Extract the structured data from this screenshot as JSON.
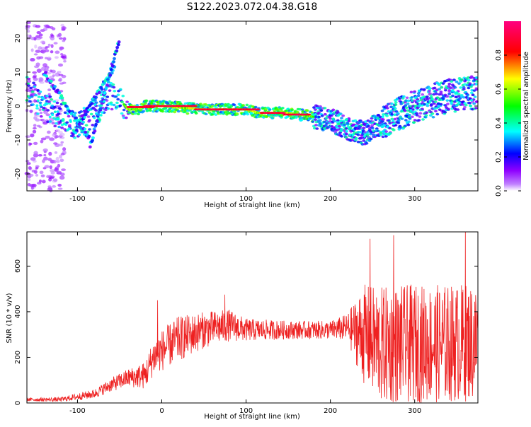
{
  "title": "S122.2023.072.04.38.G18",
  "colors": {
    "axis": "#000000",
    "snr_line": "#ee2020",
    "colormap": [
      "#ffffff",
      "#8f00ff",
      "#0000ff",
      "#00ffff",
      "#00ff00",
      "#ffff00",
      "#ff0000",
      "#ff00ff"
    ]
  },
  "chart_data": [
    {
      "type": "heatmap",
      "title": "",
      "xlabel": "Height of straight line (km)",
      "ylabel": "Frequency (Hz)",
      "xlim": [
        -160,
        375
      ],
      "ylim": [
        -25,
        25
      ],
      "xticks": [
        "-100",
        "0",
        "100",
        "200",
        "300"
      ],
      "yticks": [
        "-20",
        "-10",
        "0",
        "10",
        "20"
      ],
      "colorbar": {
        "label": "Normalized spectral amplitude",
        "range": [
          0.0,
          1.0
        ],
        "ticks": [
          "0.0",
          "0.2",
          "0.4",
          "0.6",
          "0.8"
        ]
      },
      "ridge_frequency": {
        "x": [
          -160,
          -140,
          -120,
          -100,
          -80,
          -60,
          -50,
          -40,
          -30,
          -20,
          0,
          50,
          100,
          115,
          150,
          175,
          200,
          225,
          240,
          260,
          300,
          340,
          375
        ],
        "y": [
          5,
          0,
          -3,
          -6,
          -2,
          3,
          2,
          -1,
          -1,
          0,
          0,
          -1,
          -1,
          -2,
          -2,
          -3,
          -4,
          -7,
          -8,
          -5,
          0,
          3,
          4
        ]
      },
      "peak_segments": [
        {
          "x": [
            -40,
            -10
          ],
          "y": -0.3
        },
        {
          "x": [
            -20,
            10
          ],
          "y": 0
        },
        {
          "x": [
            10,
            40
          ],
          "y": 0
        },
        {
          "x": [
            40,
            80
          ],
          "y": -1
        },
        {
          "x": [
            80,
            115
          ],
          "y": -1
        },
        {
          "x": [
            118,
            145
          ],
          "y": -2
        },
        {
          "x": [
            145,
            175
          ],
          "y": -2.5
        }
      ],
      "diagonal_streaks": [
        {
          "x": [
            -140,
            -85
          ],
          "y": [
            10,
            -10
          ]
        },
        {
          "x": [
            -105,
            -55
          ],
          "y": [
            -8,
            12
          ]
        },
        {
          "x": [
            -85,
            -50
          ],
          "y": [
            -12,
            20
          ]
        }
      ]
    },
    {
      "type": "line",
      "title": "",
      "xlabel": "Height of straight line (km)",
      "ylabel": "SNR (10 * v/v)",
      "xlim": [
        -160,
        375
      ],
      "ylim": [
        0,
        750
      ],
      "xticks": [
        "-100",
        "0",
        "100",
        "200",
        "300"
      ],
      "yticks": [
        "0",
        "200",
        "400",
        "600"
      ],
      "envelope": {
        "x": [
          -160,
          -120,
          -80,
          -60,
          -40,
          -20,
          -10,
          0,
          20,
          50,
          80,
          100,
          150,
          200,
          220,
          240,
          260,
          300,
          340,
          375
        ],
        "mean": [
          15,
          15,
          40,
          80,
          110,
          120,
          200,
          230,
          280,
          320,
          340,
          320,
          320,
          320,
          330,
          300,
          250,
          260,
          260,
          270
        ],
        "spread": [
          8,
          10,
          20,
          30,
          40,
          60,
          80,
          90,
          100,
          80,
          70,
          50,
          40,
          40,
          60,
          220,
          260,
          260,
          260,
          260
        ]
      },
      "notable_peaks": [
        {
          "x": -5,
          "y": 450
        },
        {
          "x": 75,
          "y": 475
        },
        {
          "x": 247,
          "y": 720
        },
        {
          "x": 275,
          "y": 735
        },
        {
          "x": 360,
          "y": 750
        }
      ]
    }
  ]
}
